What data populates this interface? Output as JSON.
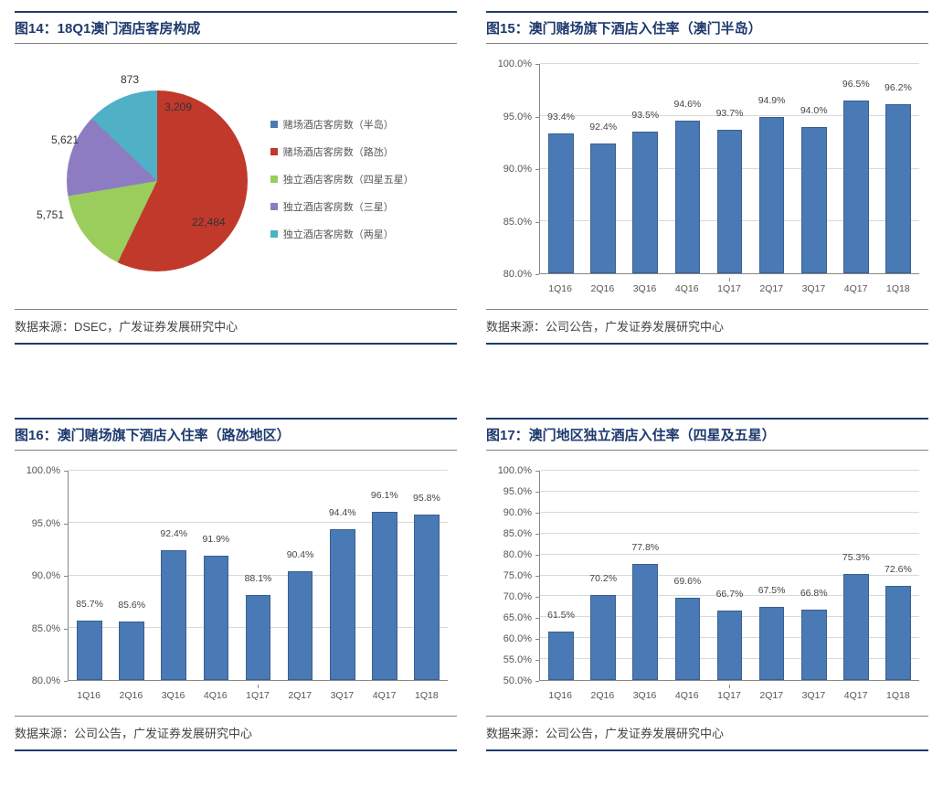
{
  "colors": {
    "title": "#1f3a6e",
    "bar_fill": "#4a7ab5",
    "bar_border": "#3a5f8f",
    "grid": "#d9d9d9",
    "axis": "#888888",
    "text": "#444444"
  },
  "fig14": {
    "title": "图14：18Q1澳门酒店客房构成",
    "source": "数据来源：DSEC，广发证券发展研究中心",
    "type": "pie",
    "slices": [
      {
        "label": "赌场酒店客房数（半岛）",
        "value": 3209,
        "color": "#4a7ab5"
      },
      {
        "label": "赌场酒店客房数（路氹）",
        "value": 22484,
        "color": "#c0392b"
      },
      {
        "label": "独立酒店客房数（四星五星）",
        "value": 5751,
        "color": "#9acd5c"
      },
      {
        "label": "独立酒店客房数（三星）",
        "value": 5621,
        "color": "#8e7cc3"
      },
      {
        "label": "独立酒店客房数（两星）",
        "value": 873,
        "color": "#4fb0c6"
      }
    ],
    "data_labels": [
      "3,209",
      "22,484",
      "5,751",
      "5,621",
      "873"
    ]
  },
  "fig15": {
    "title": "图15：澳门赌场旗下酒店入住率（澳门半岛）",
    "source": "数据来源：公司公告，广发证券发展研究中心",
    "type": "bar",
    "categories": [
      "1Q16",
      "2Q16",
      "3Q16",
      "4Q16",
      "1Q17",
      "2Q17",
      "3Q17",
      "4Q17",
      "1Q18"
    ],
    "values": [
      93.4,
      92.4,
      93.5,
      94.6,
      93.7,
      94.9,
      94.0,
      96.5,
      96.2
    ],
    "value_labels": [
      "93.4%",
      "92.4%",
      "93.5%",
      "94.6%",
      "93.7%",
      "94.9%",
      "94.0%",
      "96.5%",
      "96.2%"
    ],
    "ylim": [
      80,
      100
    ],
    "ytick_step": 5,
    "yticks": [
      "80.0%",
      "85.0%",
      "90.0%",
      "95.0%",
      "100.0%"
    ],
    "bar_color": "#4a7ab5"
  },
  "fig16": {
    "title": "图16：澳门赌场旗下酒店入住率（路氹地区）",
    "source": "数据来源：公司公告，广发证券发展研究中心",
    "type": "bar",
    "categories": [
      "1Q16",
      "2Q16",
      "3Q16",
      "4Q16",
      "1Q17",
      "2Q17",
      "3Q17",
      "4Q17",
      "1Q18"
    ],
    "values": [
      85.7,
      85.6,
      92.4,
      91.9,
      88.1,
      90.4,
      94.4,
      96.1,
      95.8
    ],
    "value_labels": [
      "85.7%",
      "85.6%",
      "92.4%",
      "91.9%",
      "88.1%",
      "90.4%",
      "94.4%",
      "96.1%",
      "95.8%"
    ],
    "ylim": [
      80,
      100
    ],
    "ytick_step": 5,
    "yticks": [
      "80.0%",
      "85.0%",
      "90.0%",
      "95.0%",
      "100.0%"
    ],
    "bar_color": "#4a7ab5"
  },
  "fig17": {
    "title": "图17：澳门地区独立酒店入住率（四星及五星）",
    "source": "数据来源：公司公告，广发证券发展研究中心",
    "type": "bar",
    "categories": [
      "1Q16",
      "2Q16",
      "3Q16",
      "4Q16",
      "1Q17",
      "2Q17",
      "3Q17",
      "4Q17",
      "1Q18"
    ],
    "values": [
      61.5,
      70.2,
      77.8,
      69.6,
      66.7,
      67.5,
      66.8,
      75.3,
      72.6
    ],
    "value_labels": [
      "61.5%",
      "70.2%",
      "77.8%",
      "69.6%",
      "66.7%",
      "67.5%",
      "66.8%",
      "75.3%",
      "72.6%"
    ],
    "ylim": [
      50,
      100
    ],
    "ytick_step": 5,
    "yticks": [
      "50.0%",
      "55.0%",
      "60.0%",
      "65.0%",
      "70.0%",
      "75.0%",
      "80.0%",
      "85.0%",
      "90.0%",
      "95.0%",
      "100.0%"
    ],
    "bar_color": "#4a7ab5"
  }
}
